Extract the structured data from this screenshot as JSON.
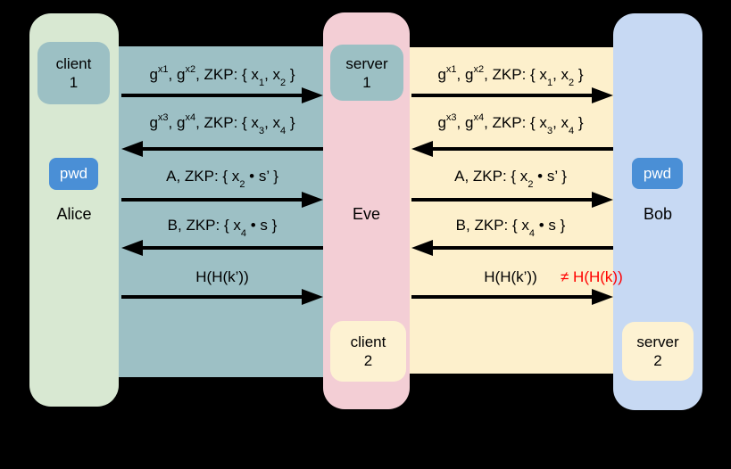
{
  "colors": {
    "background": "#000000",
    "alice_column": "#d8e8d2",
    "eve_column": "#f3ced5",
    "bob_column": "#c7d9f3",
    "left_channel": "#9dc0c5",
    "right_channel": "#fdf0cc",
    "teal_badge": "#9cc0c4",
    "yellow_badge": "#fdf2d2",
    "pwd_badge": "#4a8fd6",
    "pwd_text": "#ffffff",
    "text": "#000000",
    "mismatch_text": "#ff0000",
    "arrow": "#000000"
  },
  "actors": {
    "alice": {
      "name": "Alice",
      "top_badge_lines": [
        "client",
        "1"
      ],
      "pwd_label": "pwd"
    },
    "eve": {
      "name": "Eve",
      "top_badge_lines": [
        "server",
        "1"
      ],
      "bottom_badge_lines": [
        "client",
        "2"
      ]
    },
    "bob": {
      "name": "Bob",
      "pwd_label": "pwd",
      "bottom_badge_lines": [
        "server",
        "2"
      ]
    }
  },
  "messages": [
    {
      "direction": "right",
      "segments": [
        {
          "t": "txt",
          "v": "g"
        },
        {
          "t": "sup",
          "v": "x1"
        },
        {
          "t": "txt",
          "v": ", g"
        },
        {
          "t": "sup",
          "v": "x2"
        },
        {
          "t": "txt",
          "v": ", ZKP: { x"
        },
        {
          "t": "sub",
          "v": "1"
        },
        {
          "t": "txt",
          "v": ", x"
        },
        {
          "t": "sub",
          "v": "2"
        },
        {
          "t": "txt",
          "v": " }"
        }
      ]
    },
    {
      "direction": "left",
      "segments": [
        {
          "t": "txt",
          "v": "g"
        },
        {
          "t": "sup",
          "v": "x3"
        },
        {
          "t": "txt",
          "v": ", g"
        },
        {
          "t": "sup",
          "v": "x4"
        },
        {
          "t": "txt",
          "v": ", ZKP: { x"
        },
        {
          "t": "sub",
          "v": "3"
        },
        {
          "t": "txt",
          "v": ", x"
        },
        {
          "t": "sub",
          "v": "4"
        },
        {
          "t": "txt",
          "v": " }"
        }
      ]
    },
    {
      "direction": "right",
      "segments": [
        {
          "t": "txt",
          "v": "A, ZKP: { x"
        },
        {
          "t": "sub",
          "v": "2"
        },
        {
          "t": "txt",
          "v": " • s’ }"
        }
      ]
    },
    {
      "direction": "left",
      "segments": [
        {
          "t": "txt",
          "v": "B, ZKP: { x"
        },
        {
          "t": "sub",
          "v": "4"
        },
        {
          "t": "txt",
          "v": " • s }"
        }
      ]
    },
    {
      "direction": "right",
      "segments": [
        {
          "t": "txt",
          "v": "H(H(k’))"
        }
      ]
    }
  ],
  "mismatch_note": "≠ H(H(k))"
}
